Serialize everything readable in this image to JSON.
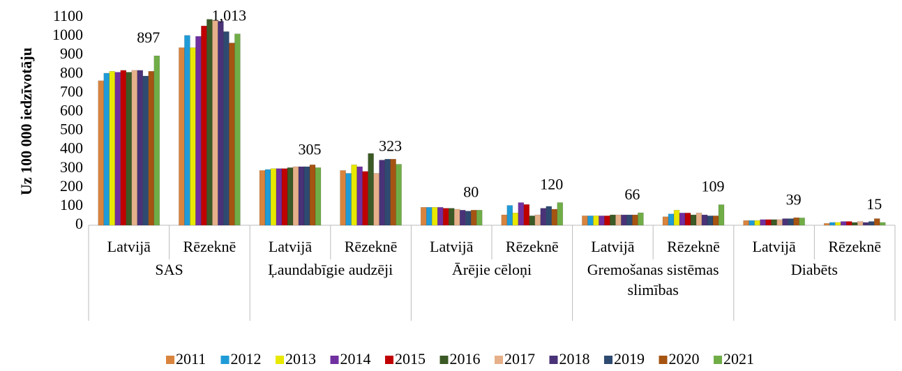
{
  "chart_data": {
    "type": "bar",
    "y_label": "Uz 100 000 iedzīvotāju",
    "categories": [
      "Latvijā",
      "Rēzeknē",
      "Latvijā",
      "Rēzeknē",
      "Latvijā",
      "Rēzeknē",
      "Latvijā",
      "Rēzeknē",
      "Latvijā",
      "Rēzeknē"
    ],
    "groups": [
      "SAS",
      "Ļaundabīgie audzēji",
      "Ārējie cēloņi",
      "Gremošanas sistēmas slimības",
      "Diabēts"
    ],
    "ylim": [
      0,
      1100
    ],
    "yticks": [
      0,
      100,
      200,
      300,
      400,
      500,
      600,
      700,
      800,
      900,
      1000,
      1100
    ],
    "grid": false,
    "legend": "bottom",
    "series": [
      {
        "name": "2011",
        "color": "#d9843e",
        "values": [
          765,
          940,
          290,
          290,
          95,
          55,
          50,
          45,
          25,
          10
        ]
      },
      {
        "name": "2012",
        "color": "#1f9bd7",
        "values": [
          805,
          1005,
          295,
          275,
          95,
          105,
          50,
          60,
          25,
          15
        ]
      },
      {
        "name": "2013",
        "color": "#e8e800",
        "values": [
          815,
          940,
          300,
          320,
          95,
          65,
          50,
          80,
          25,
          15
        ]
      },
      {
        "name": "2014",
        "color": "#7030a0",
        "values": [
          810,
          1000,
          300,
          310,
          95,
          120,
          50,
          65,
          30,
          20
        ]
      },
      {
        "name": "2015",
        "color": "#c00000",
        "values": [
          820,
          1055,
          300,
          285,
          90,
          110,
          50,
          65,
          30,
          20
        ]
      },
      {
        "name": "2016",
        "color": "#3b5a25",
        "values": [
          810,
          1090,
          305,
          380,
          90,
          50,
          55,
          55,
          30,
          15
        ]
      },
      {
        "name": "2017",
        "color": "#e6b08a",
        "values": [
          820,
          1085,
          310,
          275,
          85,
          55,
          55,
          65,
          30,
          20
        ]
      },
      {
        "name": "2018",
        "color": "#4a3278",
        "values": [
          820,
          1080,
          310,
          345,
          80,
          90,
          55,
          55,
          35,
          15
        ]
      },
      {
        "name": "2019",
        "color": "#2e4a70",
        "values": [
          790,
          1025,
          310,
          350,
          75,
          100,
          55,
          50,
          35,
          20
        ]
      },
      {
        "name": "2020",
        "color": "#a65412",
        "values": [
          815,
          965,
          320,
          350,
          80,
          85,
          55,
          50,
          40,
          35
        ]
      },
      {
        "name": "2021",
        "color": "#70ad47",
        "values": [
          897,
          1013,
          305,
          323,
          80,
          120,
          66,
          109,
          39,
          15
        ],
        "value_labels": [
          "897",
          "1,013",
          "305",
          "323",
          "80",
          "120",
          "66",
          "109",
          "39",
          "15"
        ]
      }
    ]
  }
}
